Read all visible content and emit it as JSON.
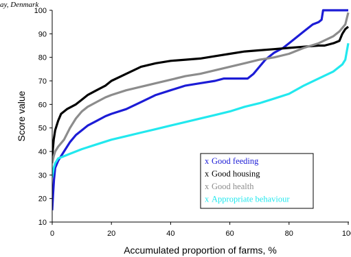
{
  "corner_caption": "ay, Denmark",
  "chart_data": {
    "type": "line",
    "title": "",
    "xlabel": "Accumulated proportion of farms, %",
    "ylabel": "Score value",
    "xlim": [
      0,
      100
    ],
    "ylim": [
      10,
      100
    ],
    "xticks": [
      0,
      20,
      40,
      60,
      80,
      100
    ],
    "yticks": [
      10,
      20,
      30,
      40,
      50,
      60,
      70,
      80,
      90,
      100
    ],
    "grid": false,
    "legend_position": "bottom-right",
    "series": [
      {
        "name": "Good feeding",
        "marker": "x",
        "color": "#1c1cd6",
        "points": [
          [
            0,
            15
          ],
          [
            0.3,
            22
          ],
          [
            0.6,
            28
          ],
          [
            1,
            33
          ],
          [
            2,
            36
          ],
          [
            4,
            40
          ],
          [
            6,
            44
          ],
          [
            8,
            47
          ],
          [
            10,
            49
          ],
          [
            12,
            51
          ],
          [
            15,
            53
          ],
          [
            18,
            55
          ],
          [
            20,
            56
          ],
          [
            25,
            58
          ],
          [
            30,
            61
          ],
          [
            35,
            64
          ],
          [
            40,
            66
          ],
          [
            45,
            68
          ],
          [
            50,
            69
          ],
          [
            55,
            70
          ],
          [
            58,
            71
          ],
          [
            60,
            71
          ],
          [
            62,
            71
          ],
          [
            64,
            71
          ],
          [
            66,
            71
          ],
          [
            68,
            73
          ],
          [
            70,
            76
          ],
          [
            72,
            79
          ],
          [
            75,
            82
          ],
          [
            78,
            84
          ],
          [
            80,
            86
          ],
          [
            82,
            88
          ],
          [
            85,
            91
          ],
          [
            88,
            94
          ],
          [
            90,
            95
          ],
          [
            91,
            96
          ],
          [
            91.5,
            100
          ],
          [
            95,
            100
          ],
          [
            100,
            100
          ]
        ]
      },
      {
        "name": "Good housing",
        "marker": "x",
        "color": "#000000",
        "points": [
          [
            0,
            38
          ],
          [
            0.5,
            45
          ],
          [
            1,
            49
          ],
          [
            2,
            53
          ],
          [
            3,
            56
          ],
          [
            5,
            58
          ],
          [
            8,
            60
          ],
          [
            10,
            62
          ],
          [
            12,
            64
          ],
          [
            15,
            66
          ],
          [
            18,
            68
          ],
          [
            20,
            70
          ],
          [
            25,
            73
          ],
          [
            30,
            76
          ],
          [
            35,
            77.5
          ],
          [
            40,
            78.5
          ],
          [
            45,
            79
          ],
          [
            50,
            79.5
          ],
          [
            55,
            80.5
          ],
          [
            60,
            81.5
          ],
          [
            65,
            82.5
          ],
          [
            70,
            83
          ],
          [
            75,
            83.5
          ],
          [
            80,
            84
          ],
          [
            85,
            84.5
          ],
          [
            90,
            85
          ],
          [
            92,
            85
          ],
          [
            95,
            86
          ],
          [
            97,
            87
          ],
          [
            98,
            90
          ],
          [
            99,
            92
          ],
          [
            100,
            93
          ]
        ]
      },
      {
        "name": "Good health",
        "marker": "x",
        "color": "#8c8c8c",
        "points": [
          [
            0,
            35
          ],
          [
            0.5,
            38
          ],
          [
            1,
            40
          ],
          [
            2,
            42
          ],
          [
            4,
            45
          ],
          [
            6,
            50
          ],
          [
            8,
            54
          ],
          [
            10,
            57
          ],
          [
            12,
            59
          ],
          [
            15,
            61
          ],
          [
            18,
            63
          ],
          [
            20,
            64
          ],
          [
            25,
            66
          ],
          [
            30,
            67.5
          ],
          [
            35,
            69
          ],
          [
            40,
            70.5
          ],
          [
            45,
            72
          ],
          [
            50,
            73
          ],
          [
            55,
            74.5
          ],
          [
            60,
            76
          ],
          [
            65,
            77.5
          ],
          [
            70,
            79
          ],
          [
            75,
            80
          ],
          [
            80,
            81.5
          ],
          [
            85,
            84
          ],
          [
            90,
            86
          ],
          [
            95,
            89
          ],
          [
            97,
            91
          ],
          [
            99,
            94
          ],
          [
            100,
            99
          ]
        ]
      },
      {
        "name": "Appropriate behaviour",
        "marker": "x",
        "color": "#22e8ee",
        "points": [
          [
            0,
            29
          ],
          [
            0.5,
            33
          ],
          [
            1,
            35
          ],
          [
            2,
            37
          ],
          [
            4,
            38
          ],
          [
            6,
            39
          ],
          [
            8,
            40
          ],
          [
            10,
            41
          ],
          [
            15,
            43
          ],
          [
            20,
            45
          ],
          [
            25,
            46.5
          ],
          [
            30,
            48
          ],
          [
            35,
            49.5
          ],
          [
            40,
            51
          ],
          [
            45,
            52.5
          ],
          [
            50,
            54
          ],
          [
            55,
            55.5
          ],
          [
            60,
            57
          ],
          [
            65,
            59
          ],
          [
            70,
            60.5
          ],
          [
            75,
            62.5
          ],
          [
            80,
            64.5
          ],
          [
            85,
            68
          ],
          [
            90,
            71
          ],
          [
            95,
            74
          ],
          [
            98,
            77
          ],
          [
            99,
            79
          ],
          [
            100,
            86
          ]
        ]
      }
    ]
  }
}
